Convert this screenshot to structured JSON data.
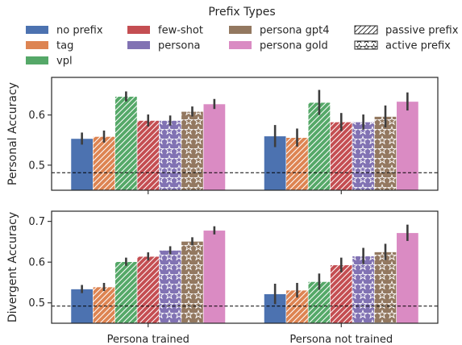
{
  "legend": {
    "title": "Prefix Types",
    "entries": [
      {
        "label": "no prefix",
        "color": "#4c72b0",
        "kind": "fill"
      },
      {
        "label": "few-shot",
        "color": "#c44e52",
        "kind": "fill"
      },
      {
        "label": "persona gpt4",
        "color": "#937860",
        "kind": "fill"
      },
      {
        "label": "passive prefix",
        "color": "#ffffff",
        "kind": "hatch-diagonal"
      },
      {
        "label": "tag",
        "color": "#dd8452",
        "kind": "fill"
      },
      {
        "label": "persona",
        "color": "#8172b3",
        "kind": "fill"
      },
      {
        "label": "persona gold",
        "color": "#da8bc3",
        "kind": "fill"
      },
      {
        "label": "active prefix",
        "color": "#ffffff",
        "kind": "hatch-star"
      },
      {
        "label": "vpl",
        "color": "#55a868",
        "kind": "fill"
      }
    ]
  },
  "chart_data": [
    {
      "type": "bar",
      "ylabel": "Personal Accuracy",
      "ylim": [
        0.45,
        0.675
      ],
      "yticks": [
        0.5,
        0.6
      ],
      "ytick_labels": [
        "0.5",
        "0.6"
      ],
      "baseline": 0.485,
      "categories": [
        "Persona trained",
        "Persona not trained"
      ],
      "show_xtick_labels": false,
      "series": [
        {
          "name": "no prefix",
          "color": "#4c72b0",
          "hatch": "none",
          "values": [
            0.553,
            0.558
          ],
          "err": [
            0.012,
            0.022
          ]
        },
        {
          "name": "tag",
          "color": "#dd8452",
          "hatch": "diagonal",
          "values": [
            0.557,
            0.555
          ],
          "err": [
            0.012,
            0.018
          ]
        },
        {
          "name": "vpl",
          "color": "#55a868",
          "hatch": "diagonal",
          "values": [
            0.637,
            0.625
          ],
          "err": [
            0.01,
            0.025
          ]
        },
        {
          "name": "few-shot",
          "color": "#c44e52",
          "hatch": "diagonal",
          "values": [
            0.589,
            0.586
          ],
          "err": [
            0.012,
            0.018
          ]
        },
        {
          "name": "persona",
          "color": "#8172b3",
          "hatch": "star",
          "values": [
            0.589,
            0.586
          ],
          "err": [
            0.01,
            0.015
          ]
        },
        {
          "name": "persona gpt4",
          "color": "#937860",
          "hatch": "star",
          "values": [
            0.607,
            0.597
          ],
          "err": [
            0.01,
            0.022
          ]
        },
        {
          "name": "persona gold",
          "color": "#da8bc3",
          "hatch": "none",
          "values": [
            0.622,
            0.627
          ],
          "err": [
            0.01,
            0.018
          ]
        }
      ]
    },
    {
      "type": "bar",
      "ylabel": "Divergent Accuracy",
      "ylim": [
        0.45,
        0.725
      ],
      "yticks": [
        0.5,
        0.6,
        0.7
      ],
      "ytick_labels": [
        "0.5",
        "0.6",
        "0.7"
      ],
      "baseline": 0.492,
      "categories": [
        "Persona trained",
        "Persona not trained"
      ],
      "show_xtick_labels": true,
      "series": [
        {
          "name": "no prefix",
          "color": "#4c72b0",
          "hatch": "none",
          "values": [
            0.534,
            0.522
          ],
          "err": [
            0.01,
            0.025
          ]
        },
        {
          "name": "tag",
          "color": "#dd8452",
          "hatch": "diagonal",
          "values": [
            0.539,
            0.531
          ],
          "err": [
            0.01,
            0.018
          ]
        },
        {
          "name": "vpl",
          "color": "#55a868",
          "hatch": "diagonal",
          "values": [
            0.601,
            0.552
          ],
          "err": [
            0.01,
            0.02
          ]
        },
        {
          "name": "few-shot",
          "color": "#c44e52",
          "hatch": "diagonal",
          "values": [
            0.614,
            0.593
          ],
          "err": [
            0.01,
            0.018
          ]
        },
        {
          "name": "persona",
          "color": "#8172b3",
          "hatch": "star",
          "values": [
            0.629,
            0.615
          ],
          "err": [
            0.01,
            0.02
          ]
        },
        {
          "name": "persona gpt4",
          "color": "#937860",
          "hatch": "star",
          "values": [
            0.651,
            0.625
          ],
          "err": [
            0.01,
            0.02
          ]
        },
        {
          "name": "persona gold",
          "color": "#da8bc3",
          "hatch": "none",
          "values": [
            0.678,
            0.672
          ],
          "err": [
            0.01,
            0.02
          ]
        }
      ]
    }
  ]
}
